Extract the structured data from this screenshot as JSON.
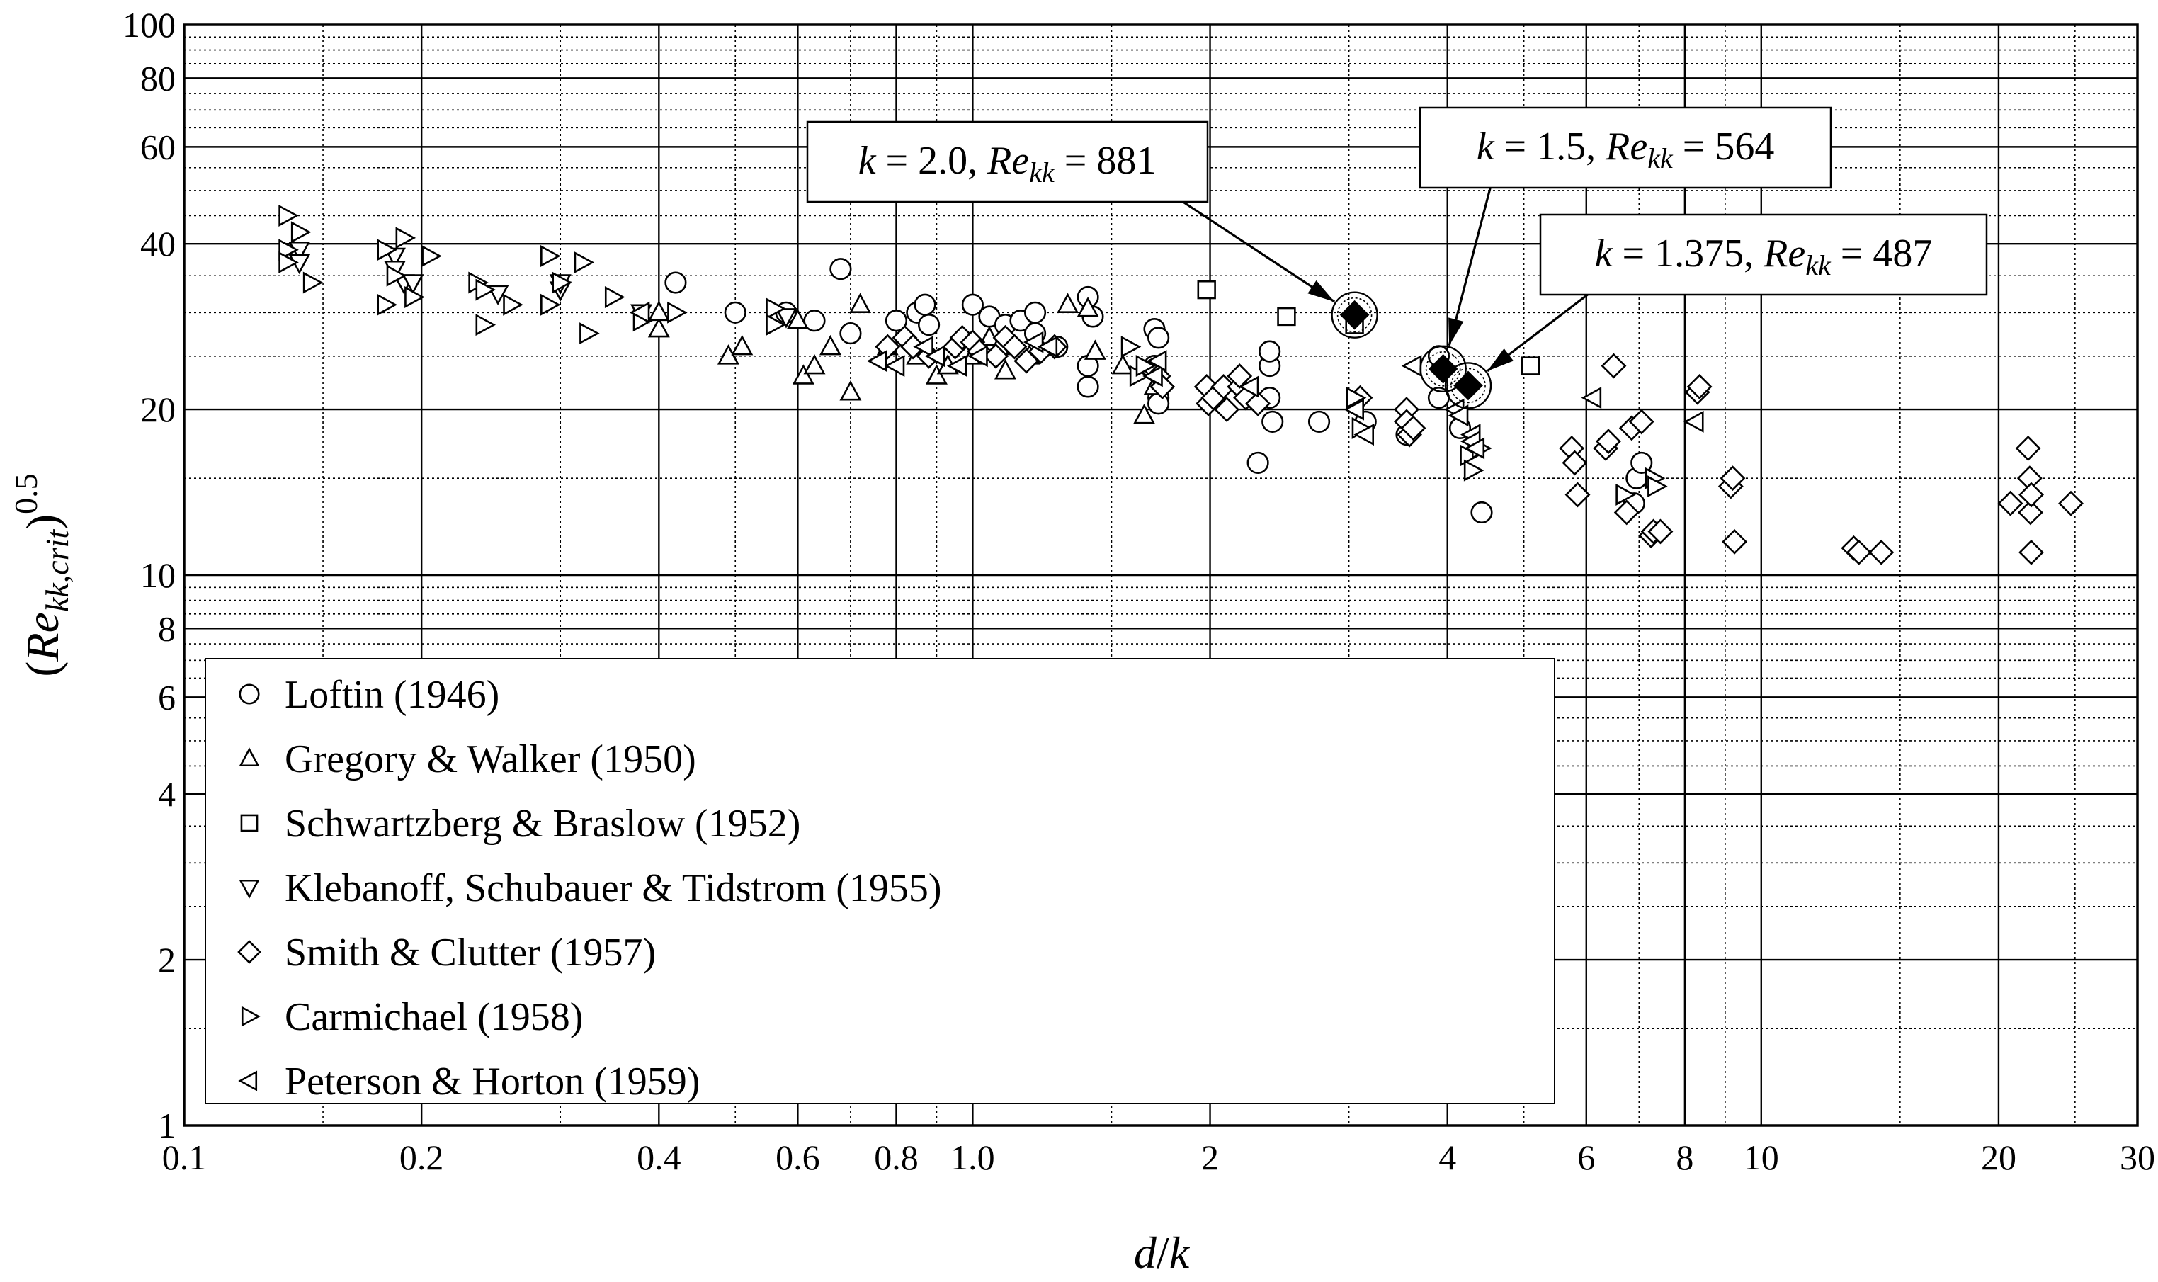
{
  "chart_data": {
    "type": "scatter",
    "xscale": "log",
    "yscale": "log",
    "xlim": [
      0.1,
      30
    ],
    "ylim": [
      1,
      100
    ],
    "xlabel": "d/k",
    "ylabel": "(Re_kk,crit)^0.5",
    "xticks": [
      {
        "v": 0.1,
        "label": "0.1"
      },
      {
        "v": 0.2,
        "label": "0.2"
      },
      {
        "v": 0.4,
        "label": "0.4"
      },
      {
        "v": 0.6,
        "label": "0.6"
      },
      {
        "v": 0.8,
        "label": "0.8"
      },
      {
        "v": 1.0,
        "label": "1.0"
      },
      {
        "v": 2,
        "label": "2"
      },
      {
        "v": 4,
        "label": "4"
      },
      {
        "v": 6,
        "label": "6"
      },
      {
        "v": 8,
        "label": "8"
      },
      {
        "v": 10,
        "label": "10"
      },
      {
        "v": 20,
        "label": "20"
      },
      {
        "v": 30,
        "label": "30"
      }
    ],
    "yticks": [
      {
        "v": 1,
        "label": "1"
      },
      {
        "v": 2,
        "label": "2"
      },
      {
        "v": 4,
        "label": "4"
      },
      {
        "v": 6,
        "label": "6"
      },
      {
        "v": 8,
        "label": "8"
      },
      {
        "v": 10,
        "label": "10"
      },
      {
        "v": 20,
        "label": "20"
      },
      {
        "v": 40,
        "label": "40"
      },
      {
        "v": 60,
        "label": "60"
      },
      {
        "v": 80,
        "label": "80"
      },
      {
        "v": 100,
        "label": "100"
      }
    ],
    "legend_position": "lower-left",
    "series": [
      {
        "name": "Loftin (1946)",
        "marker": "circle",
        "points": [
          [
            0.42,
            34
          ],
          [
            0.5,
            30
          ],
          [
            0.58,
            30
          ],
          [
            0.63,
            29
          ],
          [
            0.68,
            36
          ],
          [
            0.7,
            27.5
          ],
          [
            0.8,
            29
          ],
          [
            0.85,
            30
          ],
          [
            0.87,
            31
          ],
          [
            0.88,
            28.5
          ],
          [
            1.0,
            31
          ],
          [
            1.05,
            29.5
          ],
          [
            1.1,
            28.5
          ],
          [
            1.15,
            29
          ],
          [
            1.2,
            30
          ],
          [
            1.2,
            27.5
          ],
          [
            1.28,
            26
          ],
          [
            1.4,
            32
          ],
          [
            1.42,
            29.5
          ],
          [
            1.4,
            24
          ],
          [
            1.4,
            22
          ],
          [
            1.7,
            28
          ],
          [
            1.72,
            27
          ],
          [
            1.7,
            24
          ],
          [
            1.72,
            21
          ],
          [
            1.72,
            20.5
          ],
          [
            2.3,
            16
          ],
          [
            2.38,
            21
          ],
          [
            2.38,
            24
          ],
          [
            2.38,
            25.5
          ],
          [
            2.4,
            19
          ],
          [
            2.75,
            19
          ],
          [
            3.15,
            19
          ],
          [
            3.55,
            18
          ],
          [
            4.15,
            18.5
          ],
          [
            4.42,
            13
          ],
          [
            6.9,
            13.5
          ],
          [
            6.95,
            15
          ],
          [
            7.05,
            16
          ],
          [
            3.9,
            25
          ],
          [
            3.9,
            21
          ]
        ]
      },
      {
        "name": "Gregory & Walker (1950)",
        "marker": "triangle-up",
        "points": [
          [
            0.4,
            28
          ],
          [
            0.4,
            30
          ],
          [
            0.49,
            25
          ],
          [
            0.51,
            26
          ],
          [
            0.6,
            29
          ],
          [
            0.61,
            23
          ],
          [
            0.63,
            24
          ],
          [
            0.66,
            26
          ],
          [
            0.7,
            21.5
          ],
          [
            0.72,
            31
          ],
          [
            0.78,
            26
          ],
          [
            0.85,
            25
          ],
          [
            0.9,
            23
          ],
          [
            0.93,
            24
          ],
          [
            1.0,
            25
          ],
          [
            1.05,
            27
          ],
          [
            1.08,
            26
          ],
          [
            1.1,
            23.5
          ],
          [
            1.18,
            25
          ],
          [
            1.32,
            31
          ],
          [
            1.4,
            30.5
          ],
          [
            1.43,
            25.5
          ],
          [
            1.65,
            19.5
          ],
          [
            1.7,
            22
          ],
          [
            1.55,
            24
          ]
        ]
      },
      {
        "name": "Schwartzberg & Braslow (1952)",
        "marker": "square",
        "points": [
          [
            1.98,
            33
          ],
          [
            2.5,
            29.5
          ],
          [
            3.05,
            28.5
          ],
          [
            5.1,
            24
          ]
        ]
      },
      {
        "name": "Klebanoff, Schubauer & Tidstrom (1955)",
        "marker": "triangle-down",
        "points": [
          [
            0.14,
            39
          ],
          [
            0.14,
            37
          ],
          [
            0.185,
            38
          ],
          [
            0.185,
            36
          ],
          [
            0.19,
            34
          ],
          [
            0.195,
            34
          ],
          [
            0.25,
            32.5
          ],
          [
            0.3,
            33
          ],
          [
            0.3,
            34
          ],
          [
            0.38,
            30
          ],
          [
            0.58,
            29.5
          ]
        ]
      },
      {
        "name": "Smith & Clutter (1957)",
        "marker": "diamond",
        "points": [
          [
            0.78,
            26
          ],
          [
            0.82,
            27
          ],
          [
            0.84,
            26
          ],
          [
            0.88,
            25
          ],
          [
            0.95,
            26
          ],
          [
            0.97,
            27
          ],
          [
            1.0,
            26.5
          ],
          [
            1.02,
            25.5
          ],
          [
            1.07,
            25
          ],
          [
            1.1,
            27
          ],
          [
            1.13,
            26
          ],
          [
            1.17,
            24.5
          ],
          [
            1.22,
            25.5
          ],
          [
            1.27,
            26
          ],
          [
            1.72,
            23
          ],
          [
            1.74,
            22
          ],
          [
            1.98,
            22
          ],
          [
            1.99,
            20.5
          ],
          [
            2.02,
            21
          ],
          [
            2.08,
            22
          ],
          [
            2.1,
            20
          ],
          [
            2.18,
            22
          ],
          [
            2.18,
            23
          ],
          [
            2.22,
            21
          ],
          [
            2.3,
            20.5
          ],
          [
            3.1,
            21
          ],
          [
            3.55,
            20
          ],
          [
            3.55,
            19
          ],
          [
            3.58,
            18
          ],
          [
            3.62,
            18.5
          ],
          [
            5.75,
            17
          ],
          [
            5.8,
            16
          ],
          [
            5.85,
            14
          ],
          [
            6.35,
            17
          ],
          [
            6.4,
            17.5
          ],
          [
            6.5,
            24
          ],
          [
            6.75,
            13
          ],
          [
            6.85,
            18.5
          ],
          [
            7.05,
            19
          ],
          [
            7.25,
            11.8
          ],
          [
            7.3,
            12
          ],
          [
            7.45,
            12
          ],
          [
            8.3,
            21.5
          ],
          [
            8.35,
            22
          ],
          [
            9.15,
            14.5
          ],
          [
            9.2,
            15
          ],
          [
            9.25,
            11.5
          ],
          [
            13.1,
            11.2
          ],
          [
            13.3,
            11
          ],
          [
            14.2,
            11
          ],
          [
            20.7,
            13.5
          ],
          [
            21.8,
            17
          ],
          [
            21.9,
            15
          ],
          [
            21.95,
            13
          ],
          [
            22.0,
            11
          ],
          [
            24.7,
            13.5
          ],
          [
            22.0,
            14
          ]
        ]
      },
      {
        "name": "Carmichael (1958)",
        "marker": "triangle-right",
        "points": [
          [
            0.135,
            45
          ],
          [
            0.135,
            39
          ],
          [
            0.135,
            37
          ],
          [
            0.14,
            42
          ],
          [
            0.145,
            34
          ],
          [
            0.18,
            39
          ],
          [
            0.18,
            31
          ],
          [
            0.185,
            35
          ],
          [
            0.19,
            41
          ],
          [
            0.195,
            32
          ],
          [
            0.205,
            38
          ],
          [
            0.235,
            34
          ],
          [
            0.24,
            33
          ],
          [
            0.24,
            28.5
          ],
          [
            0.26,
            31
          ],
          [
            0.29,
            38
          ],
          [
            0.29,
            31
          ],
          [
            0.3,
            34
          ],
          [
            0.32,
            37
          ],
          [
            0.325,
            27.5
          ],
          [
            0.35,
            32
          ],
          [
            0.38,
            29
          ],
          [
            0.42,
            30
          ],
          [
            0.56,
            30.5
          ],
          [
            0.56,
            28.5
          ],
          [
            1.58,
            26
          ],
          [
            1.62,
            23
          ],
          [
            1.65,
            24
          ],
          [
            3.05,
            21
          ],
          [
            3.1,
            18.5
          ],
          [
            4.25,
            16.5
          ],
          [
            4.3,
            15.5
          ],
          [
            4.4,
            17
          ],
          [
            6.7,
            14
          ],
          [
            7.3,
            15
          ],
          [
            7.35,
            14.5
          ]
        ]
      },
      {
        "name": "Peterson & Horton (1959)",
        "marker": "triangle-left",
        "points": [
          [
            0.38,
            30
          ],
          [
            0.76,
            24.5
          ],
          [
            0.8,
            24
          ],
          [
            0.87,
            26
          ],
          [
            0.9,
            25
          ],
          [
            0.96,
            24
          ],
          [
            1.02,
            25
          ],
          [
            1.2,
            26.5
          ],
          [
            1.25,
            26
          ],
          [
            1.7,
            23
          ],
          [
            1.72,
            24.5
          ],
          [
            2.25,
            22
          ],
          [
            3.06,
            20
          ],
          [
            3.15,
            18
          ],
          [
            3.62,
            24
          ],
          [
            4.1,
            20
          ],
          [
            4.15,
            19.5
          ],
          [
            4.3,
            18
          ],
          [
            4.3,
            17.5
          ],
          [
            4.35,
            17
          ],
          [
            6.12,
            21
          ],
          [
            8.25,
            19
          ]
        ]
      }
    ],
    "highlighted": [
      {
        "k": "2.0",
        "rekk": "881",
        "x": 3.05,
        "y": 29.7
      },
      {
        "k": "1.5",
        "rekk": "564",
        "x": 3.95,
        "y": 23.7
      },
      {
        "k": "1.375",
        "rekk": "487",
        "x": 4.25,
        "y": 22.1
      }
    ]
  },
  "legend": {
    "items": [
      {
        "label": "Loftin (1946)",
        "marker": "circle"
      },
      {
        "label": "Gregory & Walker (1950)",
        "marker": "triangle-up"
      },
      {
        "label": "Schwartzberg & Braslow (1952)",
        "marker": "square"
      },
      {
        "label": "Klebanoff, Schubauer & Tidstrom (1955)",
        "marker": "triangle-down"
      },
      {
        "label": "Smith & Clutter (1957)",
        "marker": "diamond"
      },
      {
        "label": "Carmichael (1958)",
        "marker": "triangle-right"
      },
      {
        "label": "Peterson & Horton (1959)",
        "marker": "triangle-left"
      }
    ]
  },
  "annotations": [
    {
      "id": "k20",
      "k_label": "k",
      "eq": " = ",
      "k_value": "2.0",
      "sep": ", ",
      "re_label": "Re",
      "re_sub": "kk",
      "re_value": "881"
    },
    {
      "id": "k15",
      "k_label": "k",
      "eq": " = ",
      "k_value": "1.5",
      "sep": ", ",
      "re_label": "Re",
      "re_sub": "kk",
      "re_value": "564"
    },
    {
      "id": "k1375",
      "k_label": "k",
      "eq": " = ",
      "k_value": "1.375",
      "sep": ", ",
      "re_label": "Re",
      "re_sub": "kk",
      "re_value": "487"
    }
  ],
  "axes": {
    "xlabel": {
      "left": "d",
      "slash": "/",
      "right": "k"
    },
    "ylabel": {
      "open": "(",
      "re": "Re",
      "sub": "kk,crit",
      "close": ")",
      "exp": "0.5"
    }
  }
}
